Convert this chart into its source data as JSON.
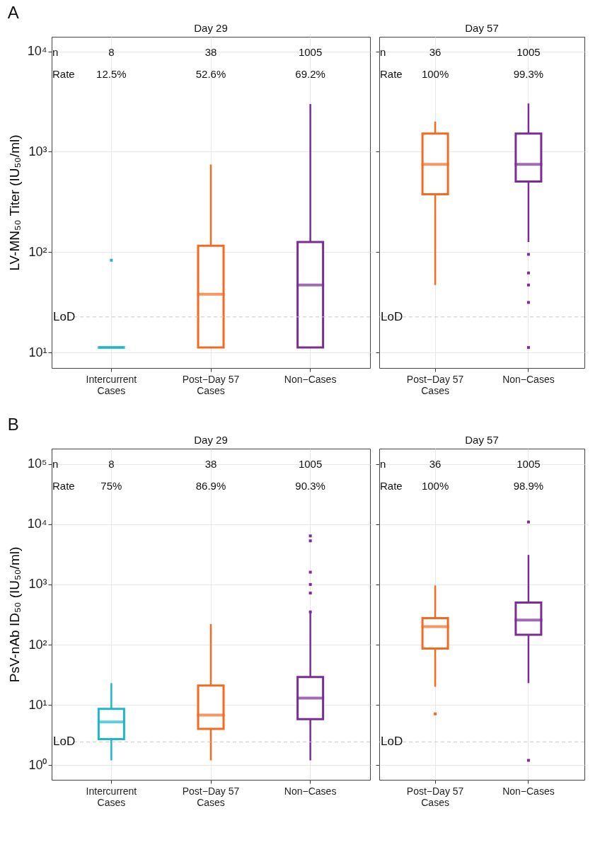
{
  "chart_data": [
    {
      "type": "box",
      "title": "Day 29",
      "ylabel": "LV-MN₅₀ Titer (IU₅₀/ml)",
      "categories": [
        "Intercurrent Cases",
        "Post−Day 57 Cases",
        "Non−Cases"
      ],
      "colors": [
        "#1fb6c9",
        "#f26b21",
        "#7b2d96"
      ],
      "boxes": [
        {
          "low": 11.2,
          "q1": 11.2,
          "median": 11.2,
          "q3": 11.2,
          "high": 11.2,
          "outliers": [
            83
          ]
        },
        {
          "low": 11.2,
          "q1": 11.2,
          "median": 38,
          "q3": 116,
          "high": 745
        },
        {
          "low": 11.2,
          "q1": 11.2,
          "median": 47,
          "q3": 126,
          "high": 2990
        }
      ],
      "ylim": [
        7,
        14000
      ],
      "yticks": [
        {
          "value": 10,
          "label": "10¹"
        },
        {
          "value": 100,
          "label": "10²"
        },
        {
          "value": 1000,
          "label": "10³"
        },
        {
          "value": 10000,
          "label": "10⁴"
        }
      ],
      "log": true,
      "grid": true,
      "ref_lines": [
        {
          "axis": "y",
          "value": 22.6,
          "label": "LoD",
          "color": "#c8c8c8",
          "line_style": "dashed"
        }
      ],
      "annotations": [
        "A",
        "n",
        "8",
        "38",
        "1005",
        "Rate",
        "12.5%",
        "52.6%",
        "69.2%"
      ]
    },
    {
      "type": "box",
      "title": "Day 57",
      "categories": [
        "Post−Day 57 Cases",
        "Non−Cases"
      ],
      "colors": [
        "#f26b21",
        "#7b2d96"
      ],
      "boxes": [
        {
          "low": 47,
          "q1": 378,
          "median": 750,
          "q3": 1517,
          "high": 2000
        },
        {
          "low": 126,
          "q1": 506,
          "median": 750,
          "q3": 1517,
          "high": 3030,
          "outliers": [
            95,
            62,
            47,
            31.5,
            11.2
          ]
        }
      ],
      "ylim": [
        7,
        14000
      ],
      "yticks": [
        10,
        100,
        1000,
        10000
      ],
      "log": true,
      "grid": true,
      "tick_labels": "x",
      "ref_lines": [
        {
          "axis": "y",
          "value": 22.6,
          "label": "LoD",
          "color": "#c8c8c8",
          "line_style": "dashed"
        }
      ],
      "annotations": [
        "n",
        "36",
        "1005",
        "Rate",
        "100%",
        "99.3%"
      ]
    },
    {
      "type": "box",
      "title": "Day 29",
      "ylabel": "PsV-nAb ID₅₀ (IU₅₀/ml)",
      "categories": [
        "Intercurrent Cases",
        "Post−Day 57 Cases",
        "Non−Cases"
      ],
      "colors": [
        "#1fb6c9",
        "#f26b21",
        "#7b2d96"
      ],
      "boxes": [
        {
          "low": 1.2,
          "q1": 2.7,
          "median": 5.2,
          "q3": 8.6,
          "high": 23
        },
        {
          "low": 1.2,
          "q1": 4,
          "median": 6.8,
          "q3": 21,
          "high": 220
        },
        {
          "low": 1.2,
          "q1": 5.8,
          "median": 13,
          "q3": 29,
          "high": 340,
          "outliers": [
            6400,
            5300,
            1600,
            1000,
            720,
            350
          ]
        }
      ],
      "ylim": [
        0.57,
        180000
      ],
      "yticks": [
        {
          "value": 1,
          "label": "10⁰"
        },
        {
          "value": 10,
          "label": "10¹"
        },
        {
          "value": 100,
          "label": "10²"
        },
        {
          "value": 1000,
          "label": "10³"
        },
        {
          "value": 10000,
          "label": "10⁴"
        },
        {
          "value": 100000,
          "label": "10⁵"
        }
      ],
      "log": true,
      "grid": true,
      "ref_lines": [
        {
          "axis": "y",
          "value": 2.43,
          "label": "LoD",
          "color": "#c8c8c8",
          "line_style": "dashed"
        }
      ],
      "annotations": [
        "B",
        "n",
        "8",
        "38",
        "1005",
        "Rate",
        "75%",
        "86.9%",
        "90.3%"
      ]
    },
    {
      "type": "box",
      "title": "Day 57",
      "categories": [
        "Post−Day 57 Cases",
        "Non−Cases"
      ],
      "colors": [
        "#f26b21",
        "#7b2d96"
      ],
      "boxes": [
        {
          "low": 20,
          "q1": 86,
          "median": 200,
          "q3": 276,
          "high": 964,
          "outliers": [
            7.1
          ]
        },
        {
          "low": 23,
          "q1": 146,
          "median": 256,
          "q3": 499,
          "high": 3100,
          "outliers": [
            10900,
            1.2
          ]
        }
      ],
      "ylim": [
        0.57,
        180000
      ],
      "yticks": [
        1,
        10,
        100,
        1000,
        10000,
        100000
      ],
      "log": true,
      "grid": true,
      "tick_labels": "x",
      "ref_lines": [
        {
          "axis": "y",
          "value": 2.43,
          "label": "LoD",
          "color": "#c8c8c8",
          "line_style": "dashed"
        }
      ],
      "annotations": [
        "n",
        "36",
        "1005",
        "Rate",
        "100%",
        "98.9%"
      ]
    }
  ]
}
